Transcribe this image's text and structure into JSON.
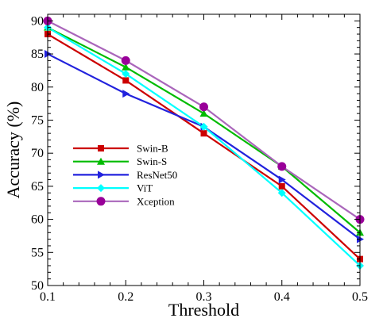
{
  "chart_data": {
    "type": "line",
    "xlabel": "Threshold",
    "ylabel": "Accuracy (%)",
    "x": [
      0.1,
      0.2,
      0.3,
      0.4,
      0.5
    ],
    "xticks": [
      "0.1",
      "0.2",
      "0.3",
      "0.4",
      "0.5"
    ],
    "yticks": [
      "50",
      "55",
      "60",
      "65",
      "70",
      "75",
      "80",
      "85",
      "90"
    ],
    "xlim": [
      0.1,
      0.5
    ],
    "ylim": [
      50,
      91
    ],
    "grid": false,
    "legend_position": "center-left",
    "series": [
      {
        "name": "Swin-B",
        "values": [
          88,
          81,
          73,
          65,
          54
        ],
        "color": "#cc0000",
        "marker": "square"
      },
      {
        "name": "Swin-S",
        "values": [
          89,
          83,
          76,
          68,
          58
        ],
        "color": "#00bb00",
        "marker": "triangle-up"
      },
      {
        "name": "ResNet50",
        "values": [
          85,
          79,
          74,
          66,
          57
        ],
        "color": "#2222dd",
        "marker": "triangle-right"
      },
      {
        "name": "ViT",
        "values": [
          89,
          82,
          74,
          64,
          53
        ],
        "color": "#00ffff",
        "marker": "diamond"
      },
      {
        "name": "Xception",
        "values": [
          90,
          84,
          77,
          68,
          60
        ],
        "color": "#aa66bb",
        "marker": "circle",
        "marker_color": "#990099"
      }
    ]
  }
}
